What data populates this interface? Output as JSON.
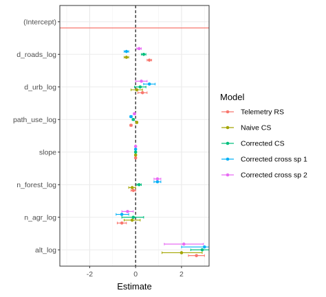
{
  "chart_data": {
    "type": "scatter",
    "subtype": "coefficient-plot-with-error-bars",
    "xlabel": "Estimate",
    "xlim": [
      -3.3,
      3.2
    ],
    "x_ticks": [
      -2,
      0,
      2
    ],
    "x_tick_labels": [
      "-2",
      "0",
      "2"
    ],
    "categories": [
      "(Intercept)",
      "d_roads_log",
      "d_urb_log",
      "path_use_log",
      "slope",
      "n_forest_log",
      "n_agr_log",
      "alt_log"
    ],
    "reference_line": {
      "x": 0,
      "style": "dashed"
    },
    "grid": true,
    "legend": {
      "title": "Model",
      "position": "right"
    },
    "series": [
      {
        "name": "Telemetry RS",
        "color": "#F8766D",
        "intercept_shown_as": "horizontal line",
        "estimates": [
          null,
          0.6,
          0.3,
          -0.2,
          0.0,
          -0.1,
          -0.6,
          2.65
        ],
        "lower": [
          null,
          0.5,
          0.1,
          -0.25,
          -0.02,
          -0.2,
          -0.8,
          2.3
        ],
        "upper": [
          null,
          0.7,
          0.5,
          -0.15,
          0.02,
          0.0,
          -0.4,
          3.0
        ]
      },
      {
        "name": "Naive CS",
        "color": "#A3A500",
        "estimates": [
          null,
          -0.4,
          0.05,
          0.05,
          0.0,
          -0.15,
          -0.15,
          2.0
        ],
        "lower": [
          null,
          -0.5,
          -0.2,
          0.0,
          -0.02,
          -0.3,
          -0.5,
          1.15
        ],
        "upper": [
          null,
          -0.3,
          0.3,
          0.1,
          0.02,
          0.0,
          0.2,
          2.9
        ]
      },
      {
        "name": "Corrected CS",
        "color": "#00BF7D",
        "estimates": [
          null,
          0.35,
          0.2,
          -0.1,
          0.0,
          0.15,
          -0.1,
          2.9
        ],
        "lower": [
          null,
          0.25,
          -0.05,
          -0.15,
          -0.02,
          0.05,
          -0.6,
          2.4
        ],
        "upper": [
          null,
          0.45,
          0.45,
          -0.05,
          0.02,
          0.25,
          0.35,
          3.25
        ]
      },
      {
        "name": "Corrected cross sp 1",
        "color": "#00B0F6",
        "estimates": [
          null,
          -0.4,
          0.6,
          -0.2,
          0.0,
          0.95,
          -0.6,
          3.0
        ],
        "lower": [
          null,
          -0.5,
          0.35,
          -0.25,
          -0.02,
          0.8,
          -0.85,
          2.0
        ],
        "upper": [
          null,
          -0.3,
          0.85,
          -0.15,
          0.02,
          1.1,
          -0.3,
          3.25
        ]
      },
      {
        "name": "Corrected cross sp 2",
        "color": "#E76BF3",
        "estimates": [
          null,
          0.15,
          0.25,
          -0.05,
          0.0,
          0.95,
          -0.35,
          2.1
        ],
        "lower": [
          null,
          0.05,
          0.0,
          -0.1,
          -0.02,
          0.8,
          -0.6,
          1.25
        ],
        "upper": [
          null,
          0.25,
          0.5,
          0.0,
          0.02,
          1.1,
          -0.1,
          2.95
        ]
      }
    ]
  }
}
